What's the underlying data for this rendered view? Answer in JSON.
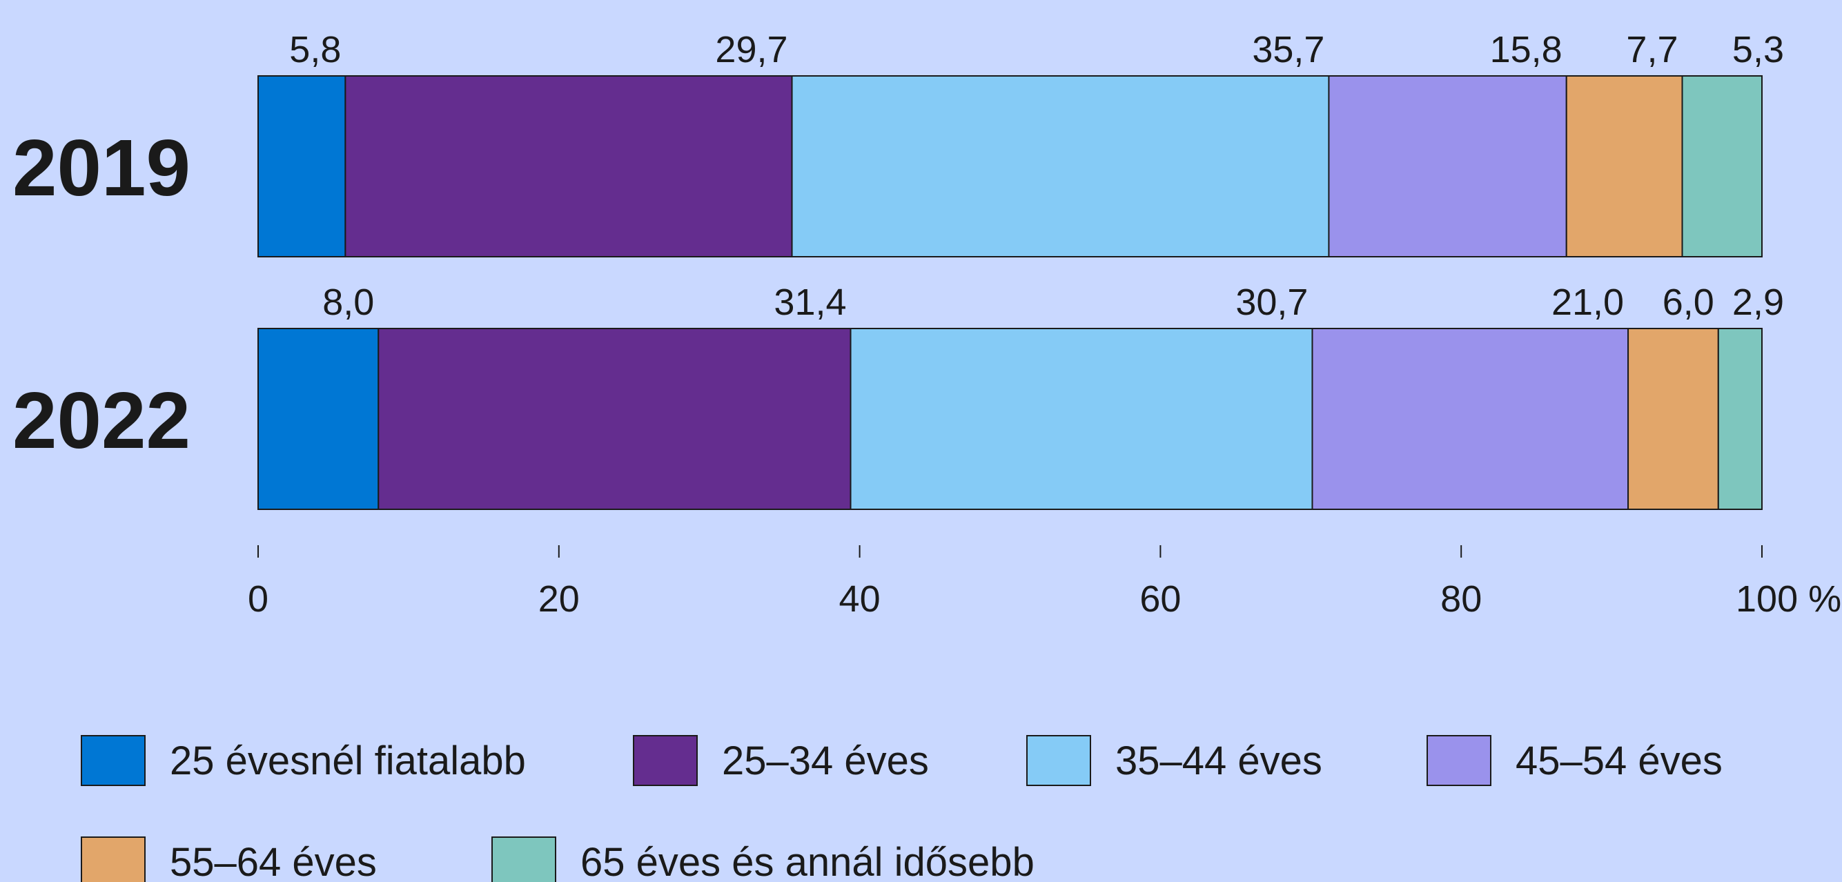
{
  "chart_data": {
    "type": "bar",
    "orientation": "horizontal",
    "stacked": true,
    "categories": [
      "2019",
      "2022"
    ],
    "series": [
      {
        "name": "25 évesnél fiatalabb",
        "color": "#0077d4",
        "values": [
          5.8,
          8.0
        ],
        "labels": [
          "5,8",
          "8,0"
        ]
      },
      {
        "name": "25–34 éves",
        "color": "#642d8f",
        "values": [
          29.7,
          31.4
        ],
        "labels": [
          "29,7",
          "31,4"
        ]
      },
      {
        "name": "35–44 éves",
        "color": "#85cbf6",
        "values": [
          35.7,
          30.7
        ],
        "labels": [
          "35,7",
          "30,7"
        ]
      },
      {
        "name": "45–54 éves",
        "color": "#9a92ec",
        "values": [
          15.8,
          21.0
        ],
        "labels": [
          "15,8",
          "21,0"
        ]
      },
      {
        "name": "55–64 éves",
        "color": "#e2a66a",
        "values": [
          7.7,
          6.0
        ],
        "labels": [
          "7,7",
          "6,0"
        ]
      },
      {
        "name": "65 éves és annál idősebb",
        "color": "#7ec6be",
        "values": [
          5.3,
          2.9
        ],
        "labels": [
          "5,3",
          "2,9"
        ]
      }
    ],
    "xlim": [
      0,
      100
    ],
    "xticks": [
      {
        "value": 0,
        "label": "0"
      },
      {
        "value": 20,
        "label": "20"
      },
      {
        "value": 40,
        "label": "40"
      },
      {
        "value": 60,
        "label": "60"
      },
      {
        "value": 80,
        "label": "80"
      },
      {
        "value": 100,
        "label": "100 %"
      }
    ],
    "grid": false,
    "legend_position": "bottom",
    "title": "",
    "xlabel": "",
    "ylabel": ""
  }
}
